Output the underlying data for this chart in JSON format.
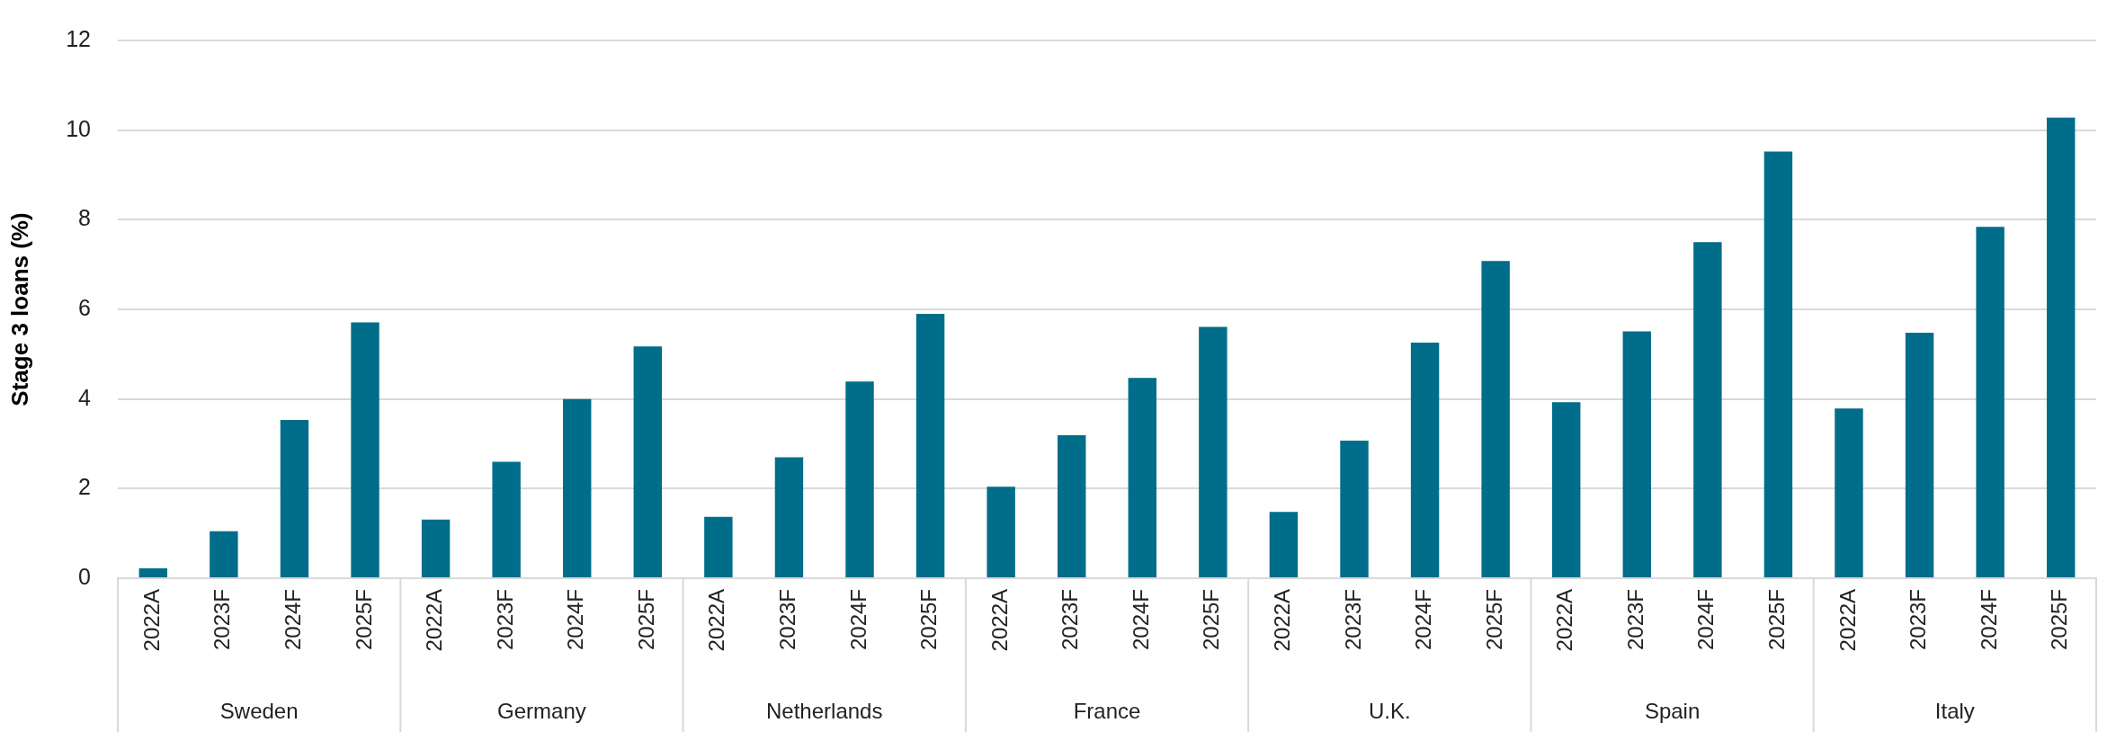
{
  "chart_data": {
    "type": "bar",
    "ylabel": "Stage 3 loans (%)",
    "categories": [
      "2022A",
      "2023F",
      "2024F",
      "2025F",
      "2022A",
      "2023F",
      "2024F",
      "2025F",
      "2022A",
      "2023F",
      "2024F",
      "2025F",
      "2022A",
      "2023F",
      "2024F",
      "2025F",
      "2022A",
      "2023F",
      "2024F",
      "2025F",
      "2022A",
      "2023F",
      "2024F",
      "2025F",
      "2022A",
      "2023F",
      "2024F",
      "2025F"
    ],
    "values": [
      0.22,
      1.05,
      3.53,
      5.71,
      1.31,
      2.6,
      4.0,
      5.17,
      1.37,
      2.7,
      4.39,
      5.9,
      2.04,
      3.19,
      4.47,
      5.61,
      1.48,
      3.07,
      5.26,
      7.08,
      3.93,
      5.51,
      7.5,
      9.52,
      3.79,
      5.48,
      7.84,
      10.28
    ],
    "color": "#006e8a",
    "ylim": [
      0,
      12
    ],
    "yticks": [
      0,
      2,
      4,
      6,
      8,
      10,
      12
    ],
    "grid": "y",
    "annotations": [
      "Sweden",
      "Germany",
      "Netherlands",
      "France",
      "U.K.",
      "Spain",
      "Italy"
    ]
  }
}
